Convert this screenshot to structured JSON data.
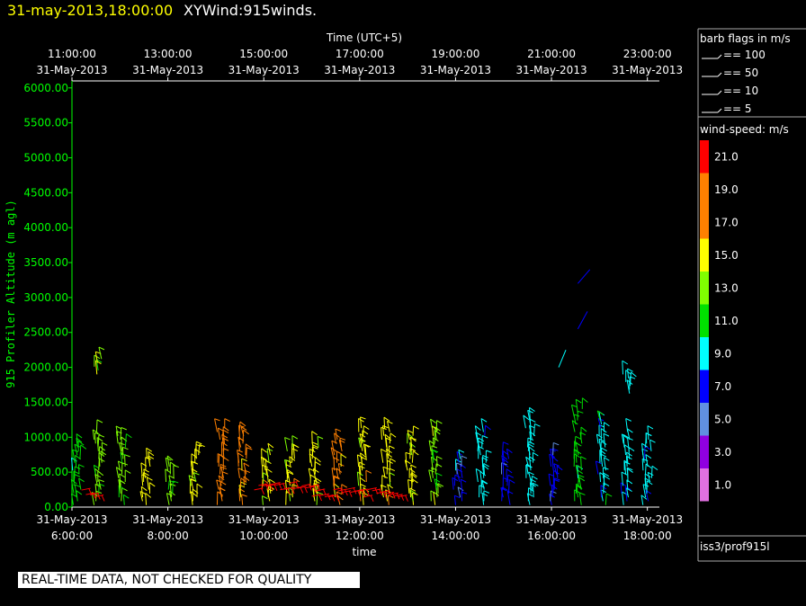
{
  "header": {
    "date_label": "31-may-2013,18:00:00",
    "product_label": "XYWind:915winds."
  },
  "qc_banner": "REAL-TIME DATA, NOT CHECKED FOR QUALITY",
  "legend": {
    "barb_title": "barb flags in m/s",
    "barb_items": [
      "== 100",
      "== 50",
      "== 10",
      "== 5"
    ],
    "speed_title": "wind-speed: m/s",
    "speed_labels": [
      "21.0",
      "19.0",
      "17.0",
      "15.0",
      "13.0",
      "11.0",
      "9.0",
      "7.0",
      "5.0",
      "3.0",
      "1.0"
    ],
    "speed_colors": [
      "#ff0000",
      "#ff8000",
      "#ff8000",
      "#ffff00",
      "#80ff00",
      "#00e000",
      "#00ffff",
      "#0000ff",
      "#6090e0",
      "#9000e0",
      "#e070e0"
    ],
    "source": "iss3/prof915l"
  },
  "chart_data": {
    "type": "scatter",
    "title": "",
    "top_axis_label": "Time (UTC+5)",
    "top_ticks": [
      {
        "time": "11:00:00",
        "date": "31-May-2013"
      },
      {
        "time": "13:00:00",
        "date": "31-May-2013"
      },
      {
        "time": "15:00:00",
        "date": "31-May-2013"
      },
      {
        "time": "17:00:00",
        "date": "31-May-2013"
      },
      {
        "time": "19:00:00",
        "date": "31-May-2013"
      },
      {
        "time": "21:00:00",
        "date": "31-May-2013"
      },
      {
        "time": "23:00:00",
        "date": "31-May-2013"
      }
    ],
    "xlabel": "time",
    "x_ticks": [
      {
        "date": "31-May-2013",
        "time": "6:00:00"
      },
      {
        "date": "31-May-2013",
        "time": "8:00:00"
      },
      {
        "date": "31-May-2013",
        "time": "10:00:00"
      },
      {
        "date": "31-May-2013",
        "time": "12:00:00"
      },
      {
        "date": "31-May-2013",
        "time": "14:00:00"
      },
      {
        "date": "31-May-2013",
        "time": "16:00:00"
      },
      {
        "date": "31-May-2013",
        "time": "18:00:00"
      }
    ],
    "xlim_hours": [
      6.0,
      18.25
    ],
    "ylabel": "915 Profiler Altitude (m agl)",
    "y_ticks": [
      "0.00",
      "500.00",
      "1000.00",
      "1500.00",
      "2000.00",
      "2500.00",
      "3000.00",
      "3500.00",
      "4000.00",
      "4500.00",
      "5000.00",
      "5500.00",
      "6000.00"
    ],
    "ylim": [
      0,
      6100
    ],
    "profile_times": [
      6.1,
      6.55,
      7.05,
      7.55,
      8.05,
      8.55,
      9.1,
      9.55,
      10.05,
      10.55,
      11.05,
      11.55,
      12.05,
      12.55,
      13.05,
      13.55,
      14.05,
      14.55,
      15.05,
      15.55,
      16.05,
      16.55,
      17.05,
      17.55,
      18.0
    ],
    "profiles": [
      {
        "time": 6.1,
        "top": 950,
        "speed": 10
      },
      {
        "time": 6.55,
        "top": 2150,
        "speed": 13
      },
      {
        "time": 7.05,
        "top": 1050,
        "speed": 12
      },
      {
        "time": 7.55,
        "top": 700,
        "speed": 14
      },
      {
        "time": 8.05,
        "top": 600,
        "speed": 13
      },
      {
        "time": 8.55,
        "top": 800,
        "speed": 14
      },
      {
        "time": 9.1,
        "top": 1150,
        "speed": 16
      },
      {
        "time": 9.55,
        "top": 1100,
        "speed": 17
      },
      {
        "time": 10.05,
        "top": 750,
        "speed": 15
      },
      {
        "time": 10.55,
        "top": 900,
        "speed": 15
      },
      {
        "time": 11.05,
        "top": 950,
        "speed": 15
      },
      {
        "time": 11.55,
        "top": 1000,
        "speed": 16
      },
      {
        "time": 12.05,
        "top": 1150,
        "speed": 15
      },
      {
        "time": 12.55,
        "top": 1150,
        "speed": 15
      },
      {
        "time": 13.05,
        "top": 1050,
        "speed": 14
      },
      {
        "time": 13.55,
        "top": 1150,
        "speed": 13
      },
      {
        "time": 14.05,
        "top": 700,
        "speed": 7
      },
      {
        "time": 14.55,
        "top": 1100,
        "speed": 8
      },
      {
        "time": 15.05,
        "top": 750,
        "speed": 7
      },
      {
        "time": 15.55,
        "top": 1250,
        "speed": 8
      },
      {
        "time": 16.05,
        "top": 750,
        "speed": 6
      },
      {
        "time": 16.55,
        "top": 1450,
        "speed": 11
      },
      {
        "time": 17.05,
        "top": 1250,
        "speed": 9
      },
      {
        "time": 17.55,
        "top": 1900,
        "speed": 8
      },
      {
        "time": 18.0,
        "top": 1000,
        "speed": 8
      }
    ],
    "low_level_red": [
      {
        "x0": 6.2,
        "x1": 6.55,
        "alt": 200,
        "speed": 21
      },
      {
        "x0": 9.8,
        "x1": 11.0,
        "alt": 300,
        "speed": 21
      },
      {
        "x0": 11.0,
        "x1": 12.8,
        "alt": 200,
        "speed": 21
      }
    ],
    "upper_segments": [
      {
        "x0": 16.15,
        "y0": 2000,
        "x1": 16.3,
        "y1": 2250,
        "speed": 9
      },
      {
        "x0": 16.55,
        "y0": 2550,
        "x1": 16.75,
        "y1": 2800,
        "speed": 7
      },
      {
        "x0": 16.55,
        "y0": 3200,
        "x1": 16.8,
        "y1": 3400,
        "speed": 7
      }
    ]
  }
}
